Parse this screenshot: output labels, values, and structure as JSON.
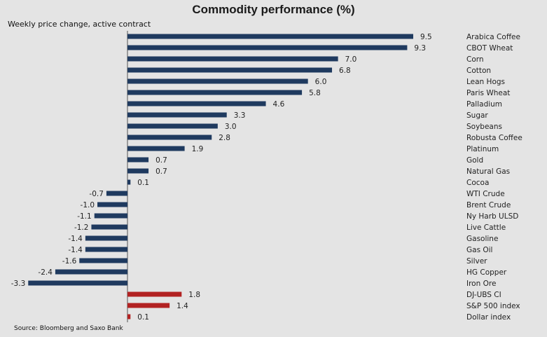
{
  "chart_data": {
    "type": "bar",
    "orientation": "horizontal",
    "title": "Commodity performance (%)",
    "subtitle": "Weekly price change, active contract",
    "source": "Source: Bloomberg and Saxo Bank",
    "categories": [
      "Arabica Coffee",
      "CBOT Wheat",
      "Corn",
      "Cotton",
      "Lean Hogs",
      "Paris Wheat",
      "Palladium",
      "Sugar",
      "Soybeans",
      "Robusta Coffee",
      "Platinum",
      "Gold",
      "Natural Gas",
      "Cocoa",
      "WTI Crude",
      "Brent Crude",
      "Ny Harb ULSD",
      "Live Cattle",
      "Gasoline",
      "Gas Oil",
      "Silver",
      "HG Copper",
      "Iron Ore",
      "DJ-UBS CI",
      "S&P 500 index",
      "Dollar index"
    ],
    "values": [
      9.5,
      9.3,
      7.0,
      6.8,
      6.0,
      5.8,
      4.6,
      3.3,
      3.0,
      2.8,
      1.9,
      0.7,
      0.7,
      0.1,
      -0.7,
      -1.0,
      -1.1,
      -1.2,
      -1.4,
      -1.4,
      -1.6,
      -2.4,
      -3.3,
      1.8,
      1.4,
      0.1
    ],
    "value_labels": [
      "9.5",
      "9.3",
      "7.0",
      "6.8",
      "6.0",
      "5.8",
      "4.6",
      "3.3",
      "3.0",
      "2.8",
      "1.9",
      "0.7",
      "0.7",
      "0.1",
      "-0.7",
      "-1.0",
      "-1.1",
      "-1.2",
      "-1.4",
      "-1.4",
      "-1.6",
      "-2.4",
      "-3.3",
      "1.8",
      "1.4",
      "0.1"
    ],
    "highlighted": [
      "DJ-UBS CI",
      "S&P 500 index",
      "Dollar index"
    ],
    "colors": {
      "commodity": "#1f3a5f",
      "index": "#b22222"
    },
    "xlim": [
      -3.3,
      9.5
    ],
    "grid": false,
    "legend": "none"
  }
}
